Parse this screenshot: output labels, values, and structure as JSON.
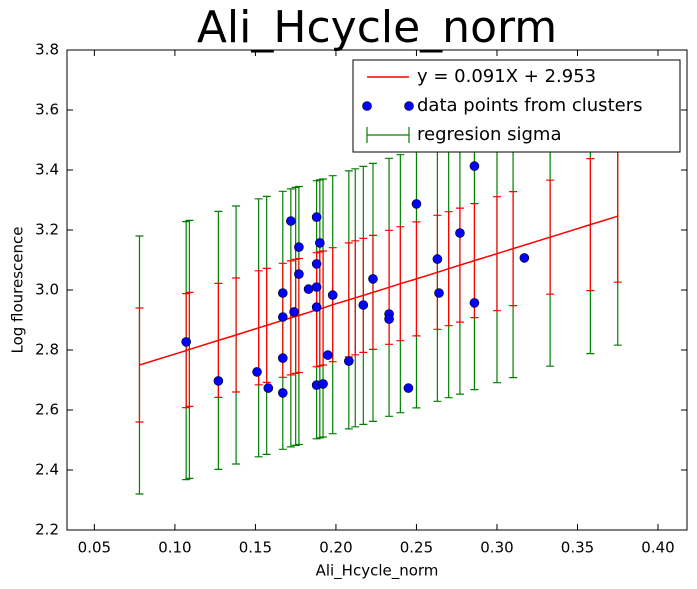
{
  "chart_data": {
    "type": "scatter",
    "title": "Ali_Hcycle_norm",
    "x_label": "Ali_Hcycle_norm",
    "y_label": "Log flourescence",
    "xlim": [
      0.033,
      0.418
    ],
    "ylim": [
      2.2,
      3.8
    ],
    "xticks": [
      0.05,
      {
        "value": 0.1,
        "label": "0.10"
      },
      0.15,
      {
        "value": 0.2,
        "label": "0.20"
      },
      0.25,
      {
        "value": 0.3,
        "label": "0.30"
      },
      0.35,
      {
        "value": 0.4,
        "label": "0.40"
      }
    ],
    "yticks": [
      2.2,
      2.4,
      2.6,
      2.8,
      {
        "value": 3,
        "label": "3.0"
      },
      3.2,
      3.4,
      3.6,
      3.8
    ],
    "legend": "upper right",
    "series": [
      {
        "name": "y = 0.091X + 2.953",
        "color": "#ff0000",
        "kind": "line",
        "x": [
          0.078,
          0.107,
          0.109,
          0.127,
          0.138,
          0.152,
          0.157,
          0.167,
          0.172,
          0.175,
          0.177,
          0.188,
          0.19,
          0.192,
          0.198,
          0.208,
          0.212,
          0.217,
          0.223,
          0.233,
          0.24,
          0.25,
          0.263,
          0.27,
          0.277,
          0.286,
          0.3,
          0.31,
          0.333,
          0.358,
          0.375
        ],
        "values": [
          2.75,
          2.798,
          2.802,
          2.832,
          2.85,
          2.874,
          2.882,
          2.899,
          2.907,
          2.912,
          2.915,
          2.934,
          2.937,
          2.94,
          2.951,
          2.967,
          2.974,
          2.982,
          2.992,
          3.009,
          3.021,
          3.037,
          3.059,
          3.071,
          3.083,
          3.098,
          3.121,
          3.138,
          3.176,
          3.218,
          3.246
        ],
        "errors": [
          0.19,
          0.19,
          0.19,
          0.19,
          0.19,
          0.19,
          0.19,
          0.19,
          0.19,
          0.19,
          0.19,
          0.19,
          0.19,
          0.19,
          0.19,
          0.19,
          0.19,
          0.19,
          0.19,
          0.19,
          0.19,
          0.19,
          0.19,
          0.19,
          0.19,
          0.19,
          0.19,
          0.19,
          0.19,
          0.22,
          0.22
        ]
      },
      {
        "name": "data points from clusters",
        "color": "#0000ff",
        "kind": "scatter",
        "x": [
          0.107,
          0.127,
          0.151,
          0.158,
          0.167,
          0.167,
          0.167,
          0.167,
          0.172,
          0.174,
          0.177,
          0.177,
          0.183,
          0.188,
          0.188,
          0.188,
          0.188,
          0.188,
          0.19,
          0.192,
          0.195,
          0.198,
          0.208,
          0.217,
          0.223,
          0.233,
          0.233,
          0.245,
          0.25,
          0.263,
          0.264,
          0.277,
          0.286,
          0.286,
          0.317
        ],
        "values": [
          2.827,
          2.697,
          2.727,
          2.673,
          2.99,
          2.91,
          2.773,
          2.657,
          3.23,
          2.927,
          3.143,
          3.053,
          3.003,
          3.243,
          3.087,
          3.01,
          2.943,
          2.683,
          3.157,
          2.687,
          2.783,
          2.983,
          2.763,
          2.95,
          3.037,
          2.92,
          2.903,
          2.673,
          3.287,
          3.103,
          2.99,
          3.19,
          3.413,
          2.957,
          3.107
        ]
      },
      {
        "name": "regresion sigma",
        "color": "#008000",
        "kind": "errorbar",
        "x": [
          0.078,
          0.107,
          0.109,
          0.127,
          0.138,
          0.152,
          0.157,
          0.167,
          0.172,
          0.175,
          0.177,
          0.188,
          0.19,
          0.192,
          0.198,
          0.208,
          0.212,
          0.217,
          0.223,
          0.233,
          0.24,
          0.25,
          0.263,
          0.27,
          0.277,
          0.286,
          0.3,
          0.31,
          0.333,
          0.358,
          0.375
        ],
        "values": [
          2.75,
          2.798,
          2.802,
          2.832,
          2.85,
          2.874,
          2.882,
          2.899,
          2.907,
          2.912,
          2.915,
          2.934,
          2.937,
          2.94,
          2.951,
          2.967,
          2.974,
          2.982,
          2.992,
          3.009,
          3.021,
          3.037,
          3.059,
          3.071,
          3.083,
          3.098,
          3.121,
          3.138,
          3.176,
          3.218,
          3.246
        ],
        "errors": [
          0.43,
          0.43,
          0.43,
          0.43,
          0.43,
          0.43,
          0.43,
          0.43,
          0.43,
          0.43,
          0.43,
          0.43,
          0.43,
          0.43,
          0.43,
          0.43,
          0.43,
          0.43,
          0.43,
          0.43,
          0.43,
          0.43,
          0.43,
          0.43,
          0.43,
          0.43,
          0.43,
          0.43,
          0.43,
          0.43,
          0.43
        ]
      }
    ]
  }
}
